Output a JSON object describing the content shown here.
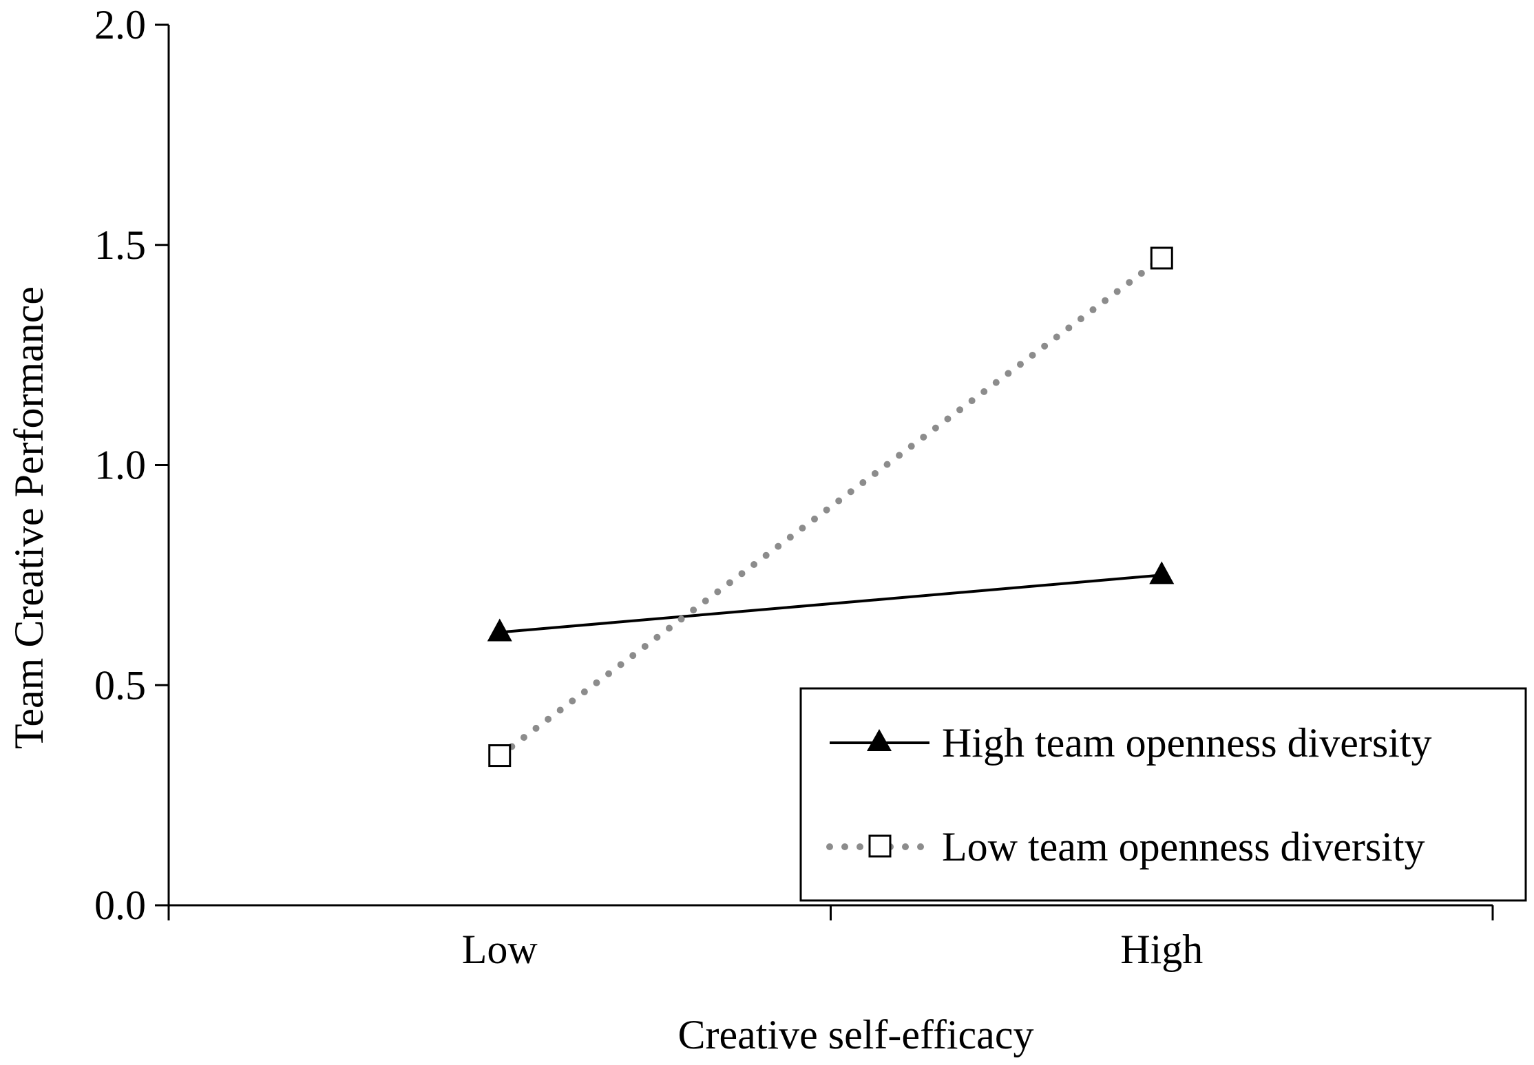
{
  "chart_data": {
    "type": "line",
    "title": "",
    "xlabel": "Creative self-efficacy",
    "ylabel": "Team Creative Performance",
    "categories": [
      "Low",
      "High"
    ],
    "ylim": [
      0,
      2
    ],
    "yticks": [
      "0.0",
      "0.5",
      "1.0",
      "1.5",
      "2.0"
    ],
    "grid": false,
    "legend_position": "bottom-right",
    "series": [
      {
        "name": "High team openness diversity",
        "values": [
          0.62,
          0.75
        ],
        "marker": "filled-triangle",
        "line_style": "solid",
        "color": "#000000"
      },
      {
        "name": "Low team openness diversity",
        "values": [
          0.34,
          1.47
        ],
        "marker": "open-square",
        "line_style": "dotted",
        "color": "#8c8c8c"
      }
    ]
  }
}
